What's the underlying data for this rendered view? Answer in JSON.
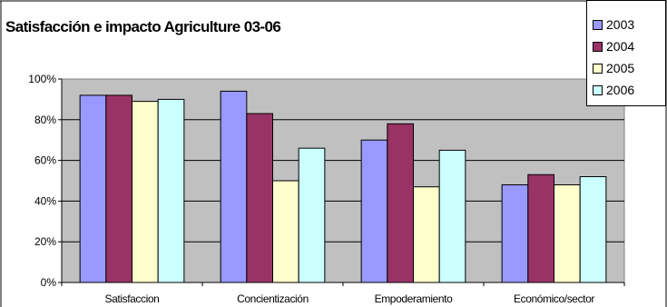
{
  "chart_data": {
    "type": "bar",
    "title": "Satisfacción e impacto Agriculture 03-06",
    "xlabel": "",
    "ylabel": "",
    "categories": [
      "Satisfaccion",
      "Concientización",
      "Empoderamiento",
      "Económico/sector"
    ],
    "series": [
      {
        "name": "2003",
        "color": "#9999ff",
        "values": [
          92,
          94,
          70,
          48
        ]
      },
      {
        "name": "2004",
        "color": "#993366",
        "values": [
          92,
          83,
          78,
          53
        ]
      },
      {
        "name": "2005",
        "color": "#ffffcc",
        "values": [
          89,
          50,
          47,
          48
        ]
      },
      {
        "name": "2006",
        "color": "#ccffff",
        "values": [
          90,
          66,
          65,
          52
        ]
      }
    ],
    "ylim": [
      0,
      100
    ],
    "yticks": [
      "0%",
      "20%",
      "40%",
      "60%",
      "80%",
      "100%"
    ],
    "ytick_values": [
      0,
      20,
      40,
      60,
      80,
      100
    ],
    "grid": true,
    "plot_background": "#c0c0c0",
    "legend_position": "top-right"
  }
}
